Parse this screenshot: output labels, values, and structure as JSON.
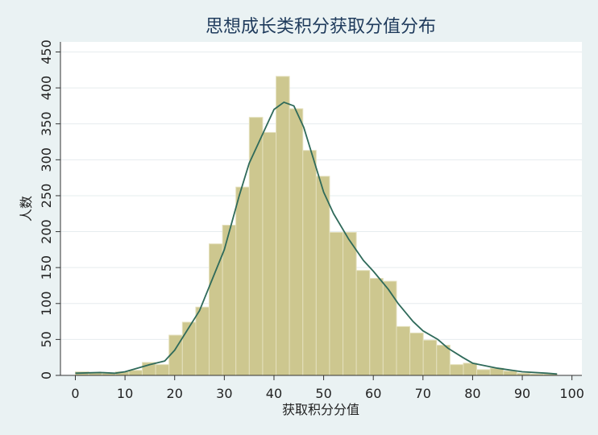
{
  "chart_data": {
    "type": "histogram",
    "title": "思想成长类积分获取分值分布",
    "x_label": "获取积分分值",
    "y_label": "人数",
    "bins": [
      0,
      2.69,
      5.39,
      8.08,
      10.78,
      13.47,
      16.17,
      18.86,
      21.56,
      24.25,
      26.94,
      29.64,
      32.33,
      35.03,
      37.72,
      40.42,
      43.11,
      45.81,
      48.5,
      51.19,
      53.89,
      56.58,
      59.28,
      61.97,
      64.67,
      67.36,
      70.06,
      72.75,
      75.44,
      78.14,
      80.83,
      83.53,
      86.22,
      88.92,
      91.61,
      94.31,
      97
    ],
    "values": [
      5,
      4,
      3,
      5,
      7,
      18,
      15,
      56,
      74,
      95,
      183,
      209,
      262,
      359,
      338,
      416,
      371,
      313,
      277,
      199,
      199,
      146,
      135,
      131,
      68,
      59,
      49,
      42,
      15,
      17,
      8,
      10,
      6,
      3,
      2,
      2
    ],
    "color": "#cdc78f",
    "density": {
      "x": [
        0,
        5,
        8,
        10,
        15,
        18,
        20,
        25,
        30,
        33,
        35,
        38,
        40,
        42,
        44,
        46,
        48,
        50,
        52,
        55,
        58,
        60,
        63,
        65,
        68,
        70,
        73,
        75,
        78,
        80,
        85,
        90,
        95,
        97
      ],
      "values": [
        3,
        4,
        3,
        5,
        15,
        20,
        35,
        90,
        175,
        250,
        295,
        340,
        370,
        380,
        375,
        345,
        300,
        255,
        225,
        190,
        160,
        145,
        120,
        100,
        75,
        62,
        50,
        38,
        25,
        17,
        10,
        5,
        3,
        2
      ],
      "color": "#2f6a5a"
    },
    "xlim": [
      -3,
      102
    ],
    "ylim": [
      0,
      464
    ],
    "xticks": [
      0,
      10,
      20,
      30,
      40,
      50,
      60,
      70,
      80,
      90,
      100
    ],
    "yticks": [
      0,
      50,
      100,
      150,
      200,
      250,
      300,
      350,
      400,
      450
    ],
    "grid": true
  }
}
